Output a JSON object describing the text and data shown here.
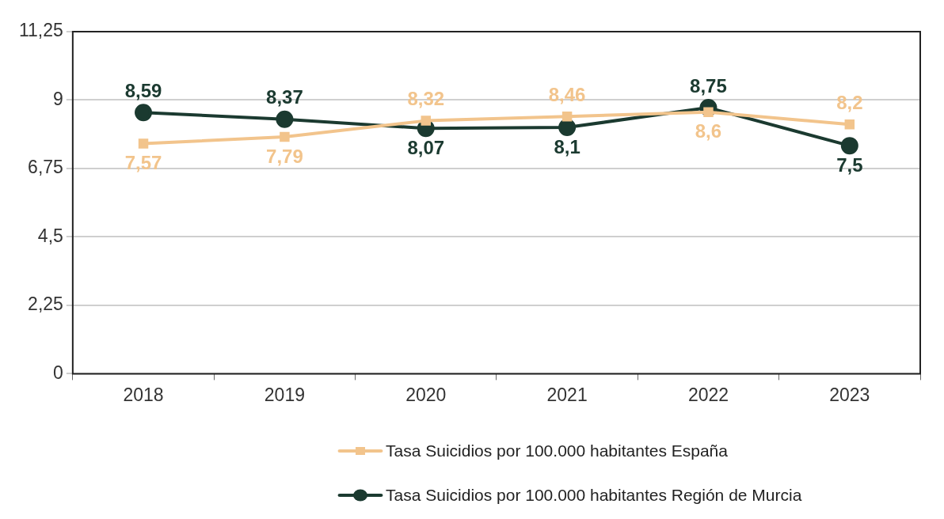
{
  "chart_data": {
    "type": "line",
    "categories": [
      "2018",
      "2019",
      "2020",
      "2021",
      "2022",
      "2023"
    ],
    "ylim": [
      0,
      11.25
    ],
    "yticks": [
      0,
      {
        "value": 2.25,
        "label": "2,25"
      },
      {
        "value": 4.5,
        "label": "4,5"
      },
      {
        "value": 6.75,
        "label": "6,75"
      },
      9,
      {
        "value": 11.25,
        "label": "11,25"
      }
    ],
    "grid": "y",
    "legend": "bottom",
    "series": [
      {
        "name": "Tasa Suicidios por 100.000 habitantes España",
        "color": "#f2c48c",
        "marker": "square",
        "values": [
          7.57,
          7.79,
          8.32,
          8.46,
          8.6,
          8.2
        ],
        "value_labels": [
          "7,57",
          "7,79",
          "8,32",
          "8,46",
          "8,6",
          "8,2"
        ]
      },
      {
        "name": "Tasa Suicidios por 100.000 habitantes Región de Murcia",
        "color": "#1b3a30",
        "marker": "circle",
        "values": [
          8.59,
          8.37,
          8.07,
          8.1,
          8.75,
          7.5
        ],
        "value_labels": [
          "8,59",
          "8,37",
          "8,07",
          "8,1",
          "8,75",
          "7,5"
        ]
      }
    ]
  }
}
